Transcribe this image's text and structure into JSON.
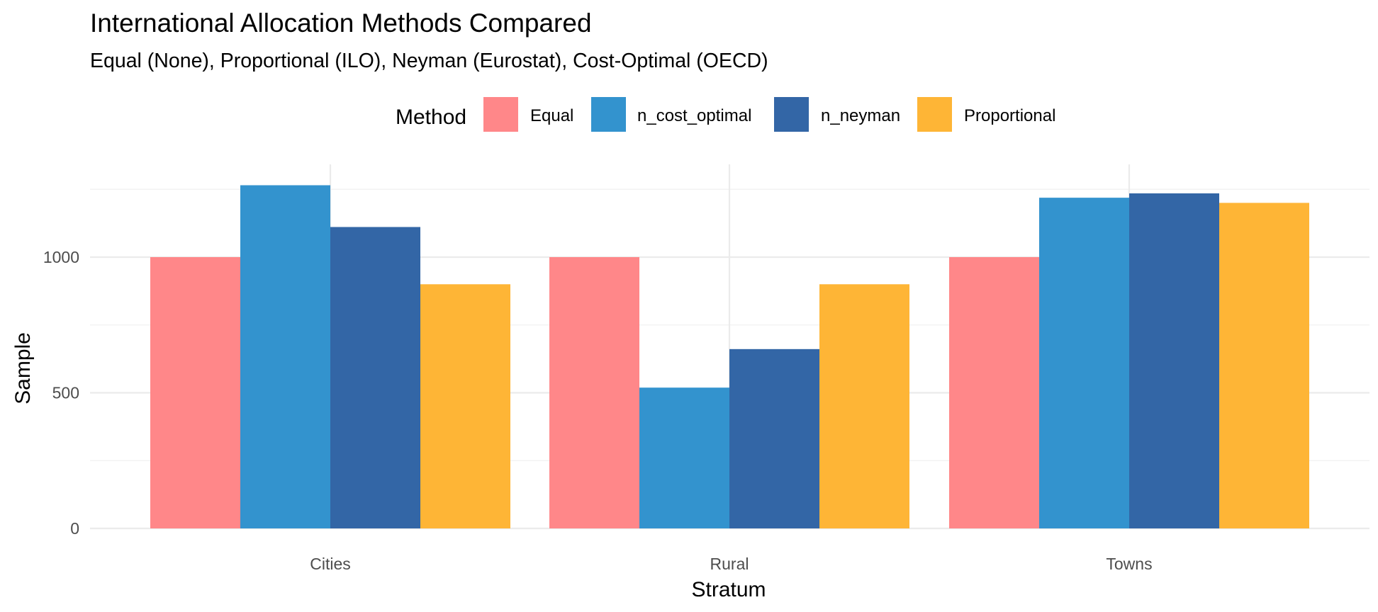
{
  "chart_data": {
    "type": "bar",
    "title": "International Allocation Methods Compared",
    "subtitle": "Equal (None), Proportional (ILO), Neyman (Eurostat), Cost-Optimal (OECD)",
    "xlabel": "Stratum",
    "ylabel": "Sample",
    "categories": [
      "Cities",
      "Rural",
      "Towns"
    ],
    "series": [
      {
        "name": "Equal",
        "color": "#ff8789",
        "values": [
          1000,
          1000,
          1000
        ]
      },
      {
        "name": "n_cost_optimal",
        "color": "#3393ce",
        "values": [
          1265,
          519,
          1219
        ]
      },
      {
        "name": "n_neyman",
        "color": "#3366a6",
        "values": [
          1111,
          661,
          1235
        ]
      },
      {
        "name": "Proportional",
        "color": "#feb536",
        "values": [
          900,
          900,
          1200
        ]
      }
    ],
    "ylim": [
      0,
      1320
    ],
    "yticks": [
      0,
      500,
      1000
    ],
    "grid": true,
    "legend": {
      "title": "Method",
      "position": "top"
    }
  }
}
